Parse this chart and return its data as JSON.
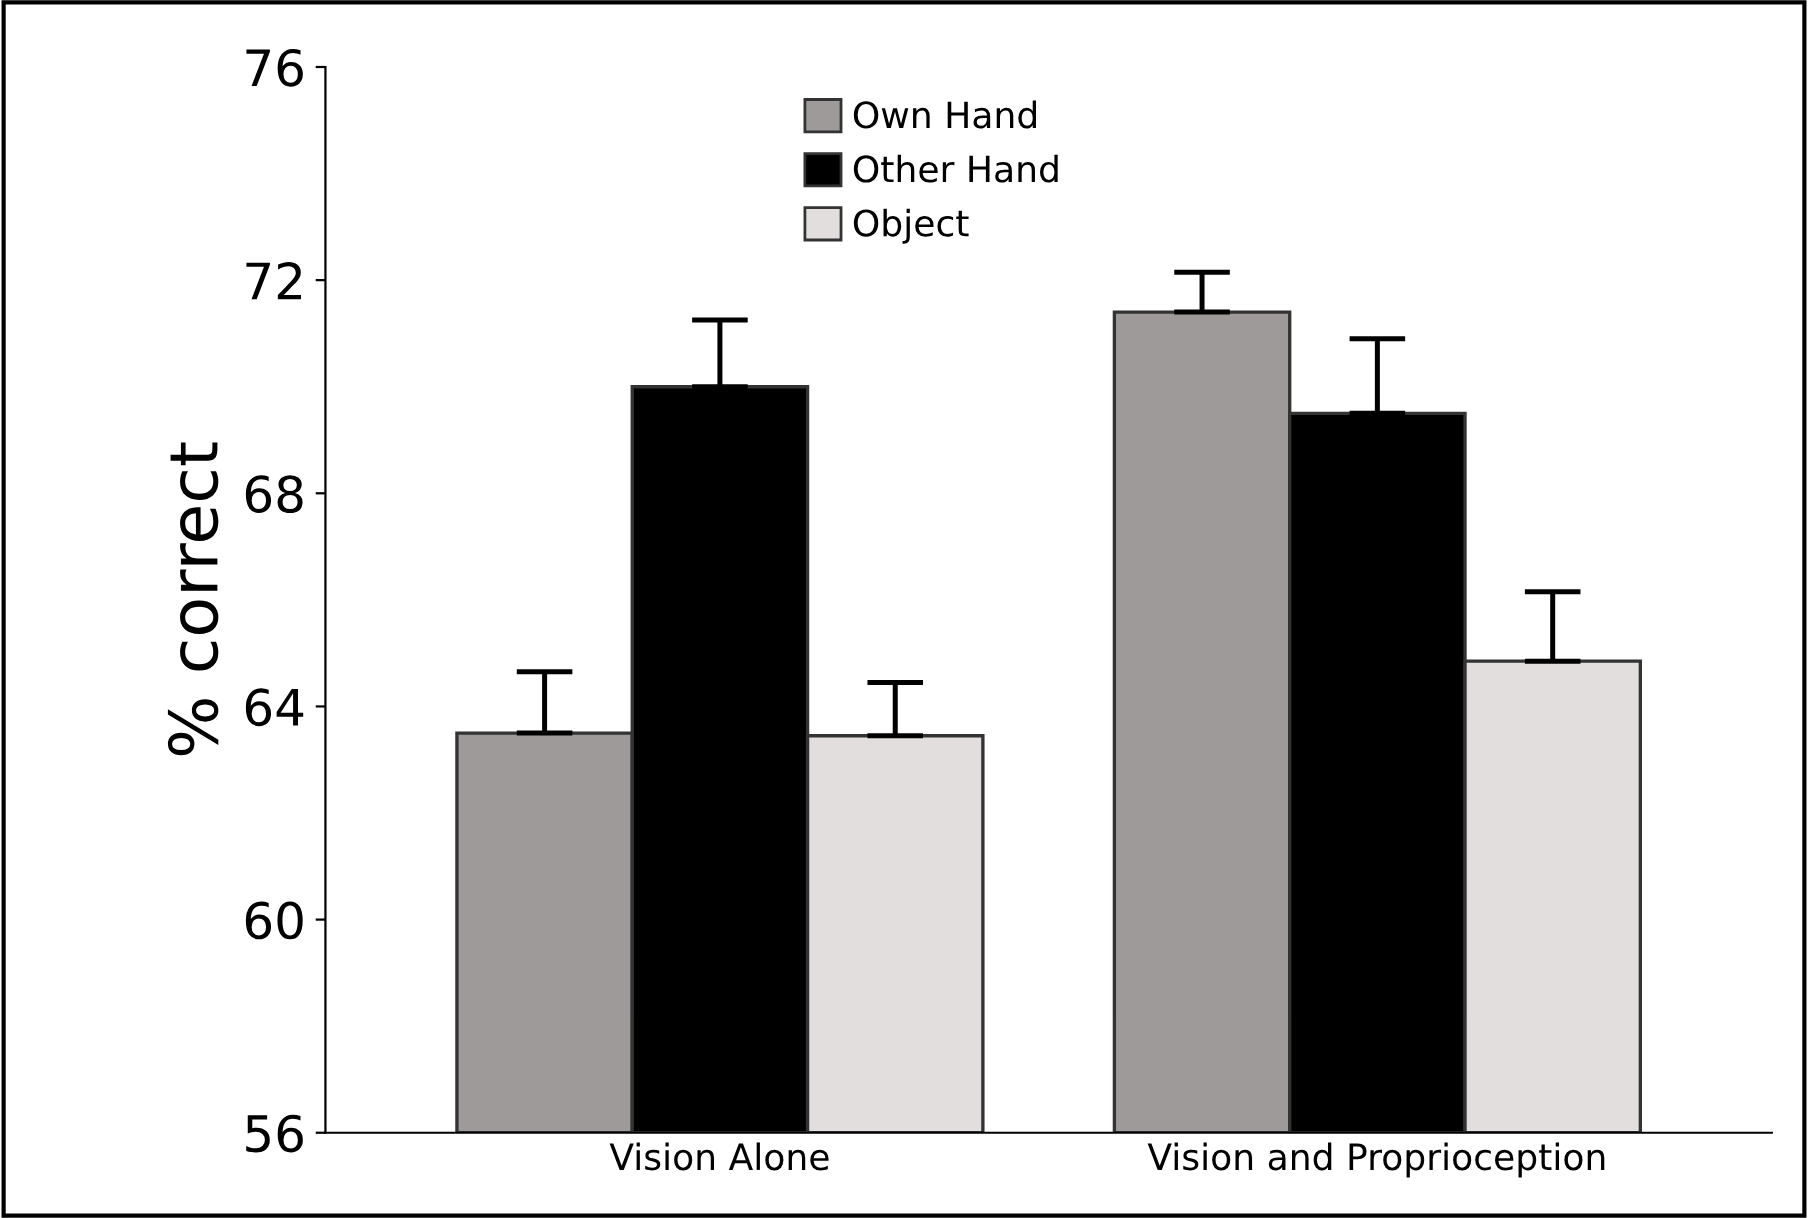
{
  "chart_data": {
    "type": "bar",
    "ylabel": "% correct",
    "categories": [
      "Vision Alone",
      "Vision and Proprioception"
    ],
    "series": [
      {
        "name": "Own Hand",
        "color": "#9e9a99",
        "values": [
          63.5,
          71.4
        ],
        "errors": [
          [
            63.5,
            64.65
          ],
          [
            71.4,
            72.15
          ]
        ]
      },
      {
        "name": "Other Hand",
        "color": "#000000",
        "values": [
          70.0,
          69.5
        ],
        "errors": [
          [
            70.0,
            71.25
          ],
          [
            69.5,
            70.9
          ]
        ]
      },
      {
        "name": "Object",
        "color": "#e2dede",
        "values": [
          63.45,
          64.85
        ],
        "errors": [
          [
            63.45,
            64.45
          ],
          [
            64.85,
            66.15
          ]
        ]
      }
    ],
    "ylim": [
      56,
      76
    ],
    "yticks": [
      56,
      60,
      64,
      68,
      72,
      76
    ],
    "grid": false,
    "legend": "top"
  }
}
